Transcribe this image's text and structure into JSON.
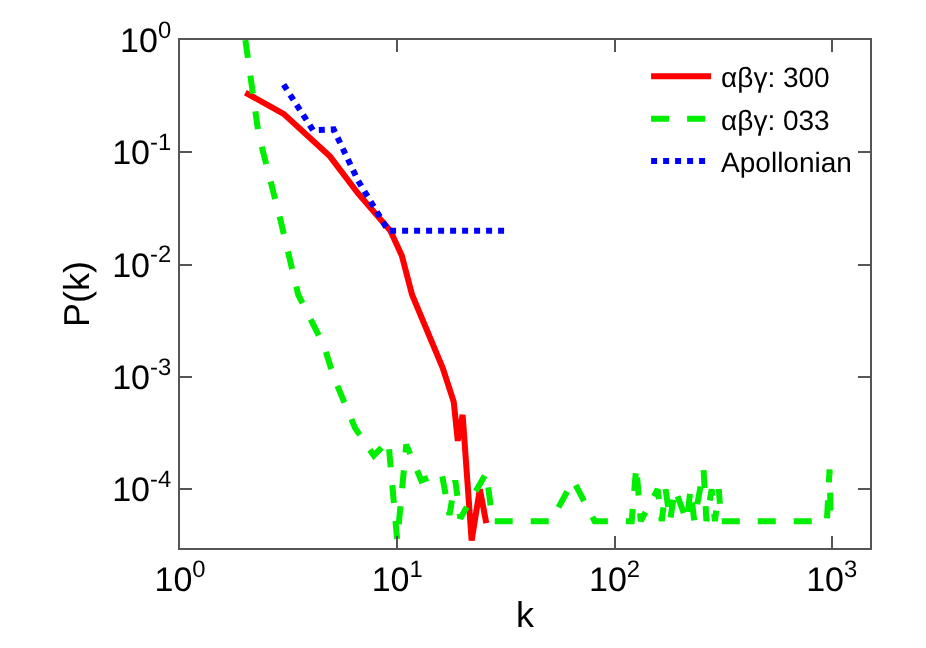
{
  "chart_data": {
    "type": "line",
    "xlabel": "k",
    "ylabel": "P(k)",
    "log": "xy",
    "legend": "top right",
    "grid": false,
    "xlim": [
      1,
      1500
    ],
    "ylim": [
      3e-05,
      1
    ],
    "xticks": [
      {
        "value": 1,
        "label": "10$^{0}$"
      },
      {
        "value": 10,
        "label": "10$^{1}$"
      },
      {
        "value": 100,
        "label": "10$^{2}$"
      },
      {
        "value": 1000,
        "label": "10$^{3}$"
      }
    ],
    "yticks": [
      {
        "value": 0.0001,
        "label": "10$^{-4}$"
      },
      {
        "value": 0.001,
        "label": "10$^{-3}$"
      },
      {
        "value": 0.01,
        "label": "10$^{-2}$"
      },
      {
        "value": 0.1,
        "label": "10$^{-1}$"
      },
      {
        "value": 1,
        "label": "10$^{0}$"
      }
    ],
    "series": [
      {
        "name": "αβγ: 300",
        "color": "#ff0000",
        "line_style": "solid",
        "x": [
          2,
          3,
          4.9,
          6.6,
          9.3,
          10.5,
          11.7,
          16.2,
          18.2,
          19,
          20,
          22,
          24,
          25.7
        ],
        "values": [
          0.34,
          0.22,
          0.092,
          0.043,
          0.02,
          0.012,
          0.0054,
          0.0012,
          0.0006,
          0.00027,
          0.00046,
          3.5e-05,
          0.0001,
          5e-05
        ]
      },
      {
        "name": "αβγ: 033",
        "color": "#00ee00",
        "line_style": "dashed",
        "x": [
          2,
          2.3,
          2.9,
          3.5,
          4.6,
          5.1,
          6.4,
          7.8,
          9.1,
          10,
          11,
          12.9,
          16,
          17.4,
          18.5,
          19.5,
          25.7,
          27.5,
          51,
          64.6,
          81,
          120,
          126,
          132,
          158,
          165,
          172,
          180,
          190,
          215,
          224,
          233,
          257,
          265,
          280,
          290,
          302,
          310,
          950,
          977,
          990
        ],
        "values": [
          1,
          0.145,
          0.025,
          0.0054,
          0.0019,
          0.001,
          0.00035,
          0.0002,
          0.00027,
          3.5e-05,
          0.00025,
          0.00012,
          0.00014,
          5.9e-05,
          0.00012,
          5.5e-05,
          0.00014,
          5.2e-05,
          5.2e-05,
          0.00012,
          5.2e-05,
          5.2e-05,
          0.00016,
          5.2e-05,
          0.0001,
          5.2e-05,
          0.0001,
          5.2e-05,
          0.0001,
          5.2e-05,
          0.0001,
          5.2e-05,
          0.00015,
          5.2e-05,
          0.0001,
          5.2e-05,
          0.0001,
          5.2e-05,
          5.2e-05,
          0.00015,
          5.2e-05
        ]
      },
      {
        "name": "Apollonian",
        "color": "#0000ff",
        "line_style": "dotted",
        "x": [
          3,
          4.1,
          5.1,
          6.6,
          9.1,
          33
        ],
        "values": [
          0.4,
          0.157,
          0.16,
          0.056,
          0.02,
          0.02
        ]
      }
    ]
  }
}
